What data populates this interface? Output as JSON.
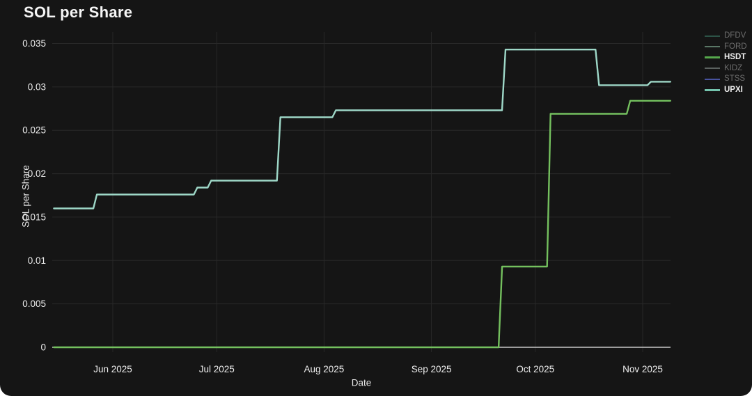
{
  "title": "SOL per Share",
  "legend": {
    "position": "top-right",
    "items": [
      {
        "label": "DFDV",
        "color": "#2c5347",
        "active": false
      },
      {
        "label": "FORD",
        "color": "#5a7766",
        "active": false
      },
      {
        "label": "HSDT",
        "color": "#56a84c",
        "active": true
      },
      {
        "label": "KIDZ",
        "color": "#5b615f",
        "active": false
      },
      {
        "label": "STSS",
        "color": "#4853a0",
        "active": false
      },
      {
        "label": "UPXI",
        "color": "#74c4ae",
        "active": true
      }
    ]
  },
  "chart_data": {
    "type": "line",
    "title": "SOL per Share",
    "xlabel": "Date",
    "ylabel": "SOL per Share",
    "interpolation": "step",
    "grid": true,
    "legend_position": "top-right",
    "ylim": [
      0,
      0.035
    ],
    "x_domain": [
      "2025-05-15",
      "2025-11-09"
    ],
    "y_ticks": [
      {
        "value": 0,
        "label": "0"
      },
      {
        "value": 0.005,
        "label": "0.005"
      },
      {
        "value": 0.01,
        "label": "0.01"
      },
      {
        "value": 0.015,
        "label": "0.015"
      },
      {
        "value": 0.02,
        "label": "0.02"
      },
      {
        "value": 0.025,
        "label": "0.025"
      },
      {
        "value": 0.03,
        "label": "0.03"
      },
      {
        "value": 0.035,
        "label": "0.035"
      }
    ],
    "x_ticks": [
      {
        "date": "2025-06-01",
        "label": "Jun 2025"
      },
      {
        "date": "2025-07-01",
        "label": "Jul 2025"
      },
      {
        "date": "2025-08-01",
        "label": "Aug 2025"
      },
      {
        "date": "2025-09-01",
        "label": "Sep 2025"
      },
      {
        "date": "2025-10-01",
        "label": "Oct 2025"
      },
      {
        "date": "2025-11-01",
        "label": "Nov 2025"
      }
    ],
    "series": [
      {
        "name": "HSDT",
        "color": "#74c05e",
        "points": [
          [
            "2025-05-15",
            0
          ],
          [
            "2025-09-21",
            0.0093
          ],
          [
            "2025-10-05",
            0.0269
          ],
          [
            "2025-10-28",
            0.0284
          ],
          [
            "2025-11-09",
            0.0284
          ]
        ]
      },
      {
        "name": "UPXI",
        "color": "#9ed8c8",
        "points": [
          [
            "2025-05-15",
            0.016
          ],
          [
            "2025-05-27",
            0.0176
          ],
          [
            "2025-06-25",
            0.0184
          ],
          [
            "2025-06-29",
            0.0192
          ],
          [
            "2025-07-19",
            0.0265
          ],
          [
            "2025-08-04",
            0.0273
          ],
          [
            "2025-09-22",
            0.0343
          ],
          [
            "2025-10-19",
            0.0302
          ],
          [
            "2025-11-03",
            0.0306
          ],
          [
            "2025-11-09",
            0.0306
          ]
        ]
      }
    ]
  },
  "colors": {
    "background": "#151515",
    "grid": "#282828",
    "zero_line": "#c9c9c9",
    "tick_text": "#ededed",
    "title_text": "#f5f5f5"
  }
}
